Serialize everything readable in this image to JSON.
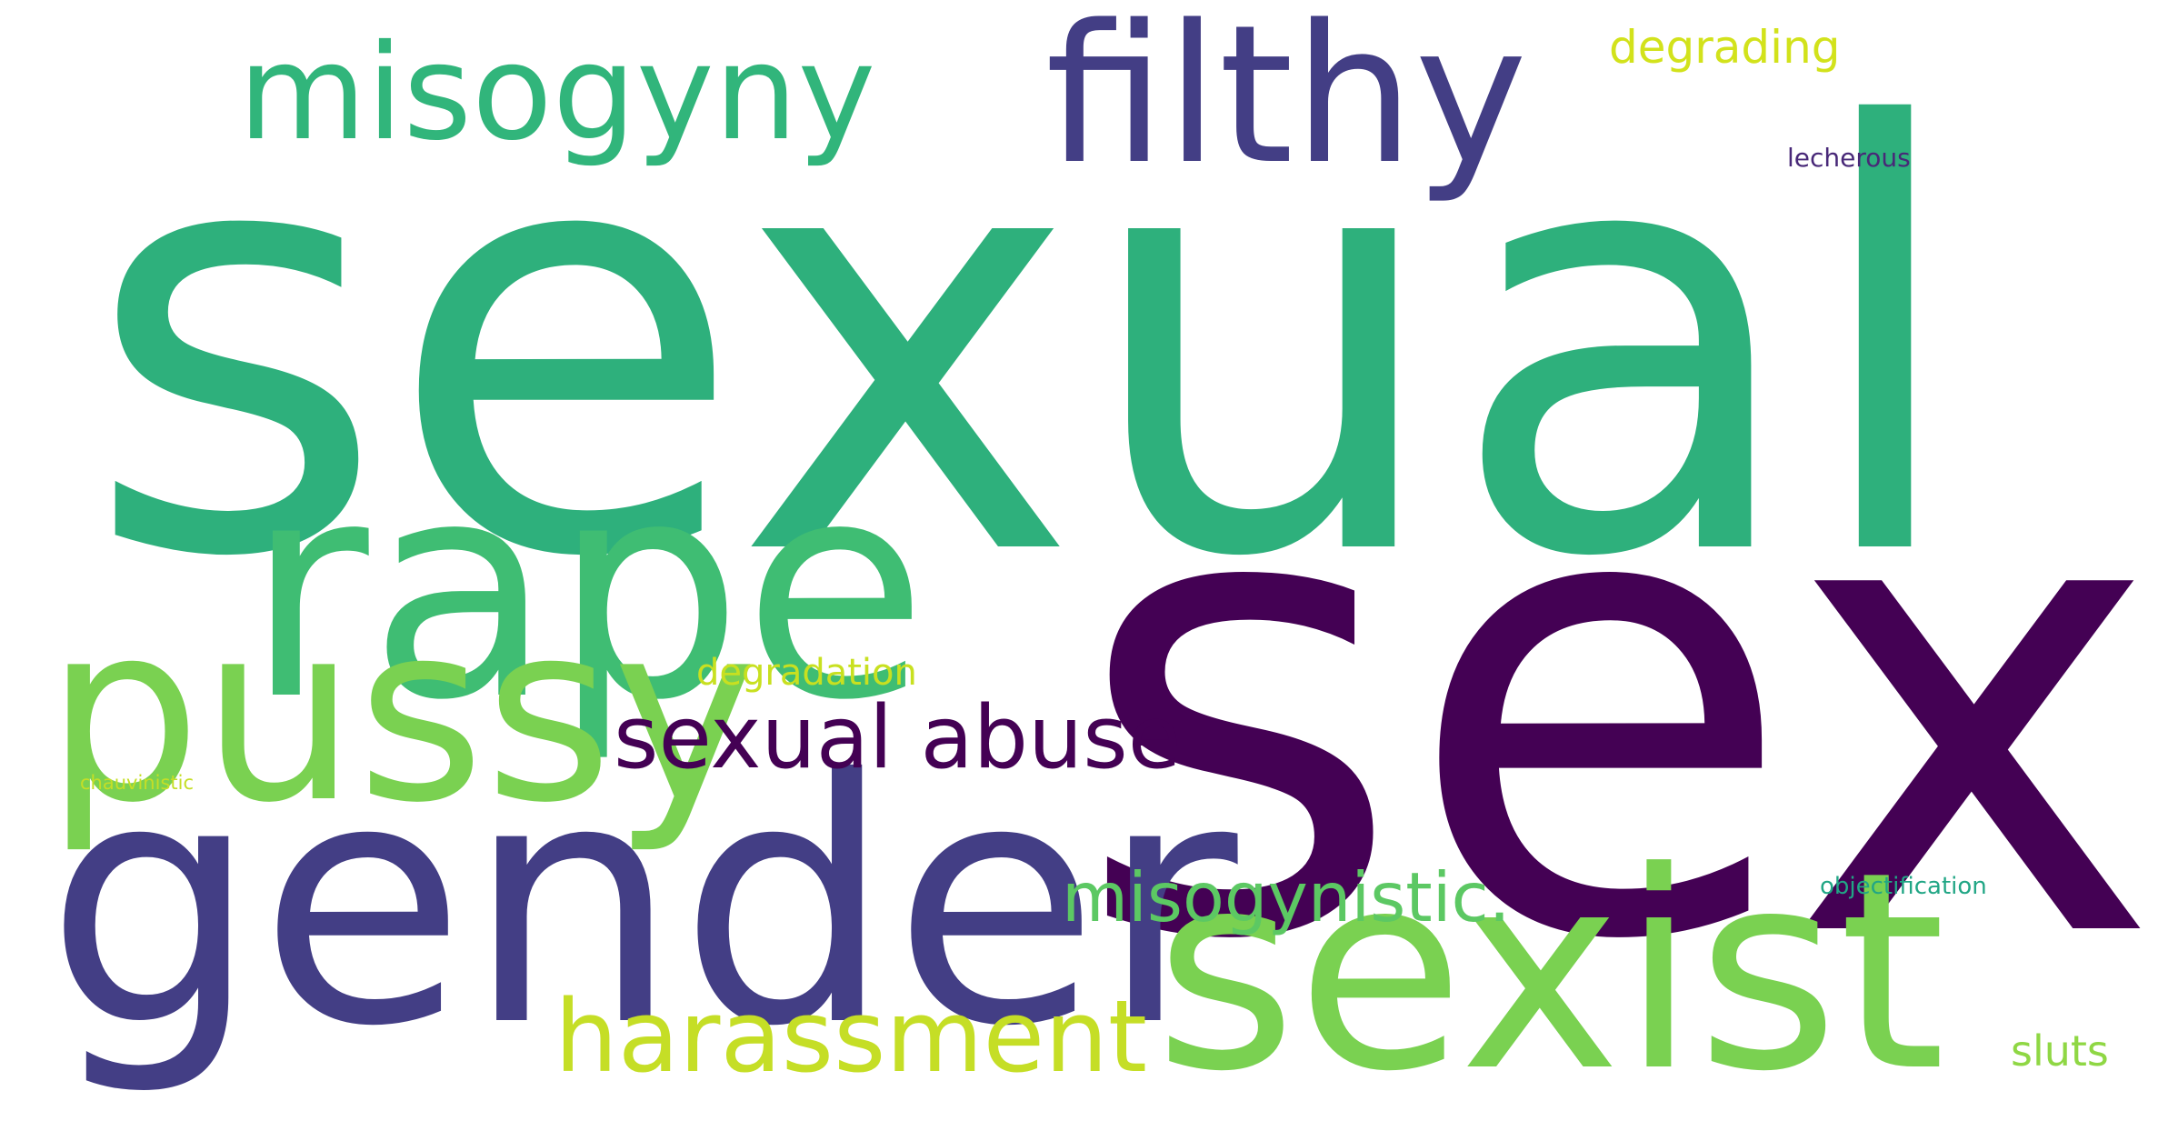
{
  "words": [
    {
      "text": "sexual",
      "color": "#2eb07c"
    },
    {
      "text": "sex",
      "color": "#440154"
    },
    {
      "text": "gender",
      "color": "#433e85"
    },
    {
      "text": "rape",
      "color": "#3fbd73"
    },
    {
      "text": "sexist",
      "color": "#7ad151"
    },
    {
      "text": "pussy",
      "color": "#7ad151"
    },
    {
      "text": "filthy",
      "color": "#433e85"
    },
    {
      "text": "misogyny",
      "color": "#31b57b"
    },
    {
      "text": "harassment",
      "color": "#c5de26"
    },
    {
      "text": "sexual abuse",
      "color": "#440154"
    },
    {
      "text": "misogynistic.",
      "color": "#5cc863"
    },
    {
      "text": "degrading",
      "color": "#d2e21b"
    },
    {
      "text": "degradation",
      "color": "#c8e020"
    },
    {
      "text": "sluts",
      "color": "#8fd744"
    },
    {
      "text": "lecherous",
      "color": "#482878"
    },
    {
      "text": "objectification",
      "color": "#21a685"
    },
    {
      "text": "chauvinistic",
      "color": "#c5de26"
    }
  ]
}
